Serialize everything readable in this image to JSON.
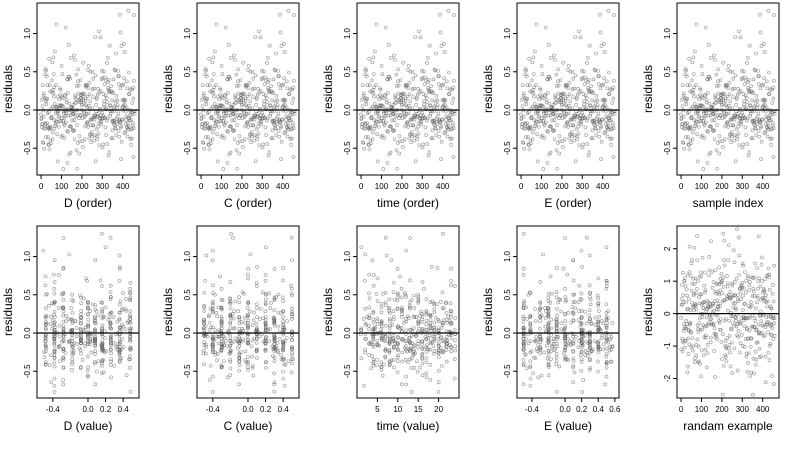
{
  "chart_data": [
    {
      "id": "d-order",
      "type": "scatter",
      "xlabel": "D (order)",
      "ylabel": "residuals",
      "xlim": [
        -20,
        480
      ],
      "ylim": [
        -0.85,
        1.4
      ],
      "xticks": [
        0,
        100,
        200,
        300,
        400
      ],
      "xtick_labels": [
        "0",
        "100",
        "200",
        "300",
        "400"
      ],
      "yticks": [
        -0.5,
        0,
        0.5,
        1
      ],
      "ytick_labels": [
        "-0.5",
        "0.0",
        "0.5",
        "1.0"
      ],
      "hline": 0,
      "x_kind": "order",
      "n": 460,
      "seed": 11
    },
    {
      "id": "c-order",
      "type": "scatter",
      "xlabel": "C (order)",
      "ylabel": "residuals",
      "xlim": [
        -20,
        480
      ],
      "ylim": [
        -0.85,
        1.4
      ],
      "xticks": [
        0,
        100,
        200,
        300,
        400
      ],
      "xtick_labels": [
        "0",
        "100",
        "200",
        "300",
        "400"
      ],
      "yticks": [
        -0.5,
        0,
        0.5,
        1
      ],
      "ytick_labels": [
        "-0.5",
        "0.0",
        "0.5",
        "1.0"
      ],
      "hline": 0,
      "x_kind": "order",
      "n": 460,
      "seed": 11
    },
    {
      "id": "time-order",
      "type": "scatter",
      "xlabel": "time (order)",
      "ylabel": "residuals",
      "xlim": [
        -20,
        480
      ],
      "ylim": [
        -0.85,
        1.4
      ],
      "xticks": [
        0,
        100,
        200,
        300,
        400
      ],
      "xtick_labels": [
        "0",
        "100",
        "200",
        "300",
        "400"
      ],
      "yticks": [
        -0.5,
        0,
        0.5,
        1
      ],
      "ytick_labels": [
        "-0.5",
        "0.0",
        "0.5",
        "1.0"
      ],
      "hline": 0,
      "x_kind": "order",
      "n": 460,
      "seed": 11
    },
    {
      "id": "e-order",
      "type": "scatter",
      "xlabel": "E (order)",
      "ylabel": "residuals",
      "xlim": [
        -20,
        480
      ],
      "ylim": [
        -0.85,
        1.4
      ],
      "xticks": [
        0,
        100,
        200,
        300,
        400
      ],
      "xtick_labels": [
        "0",
        "100",
        "200",
        "300",
        "400"
      ],
      "yticks": [
        -0.5,
        0,
        0.5,
        1
      ],
      "ytick_labels": [
        "-0.5",
        "0.0",
        "0.5",
        "1.0"
      ],
      "hline": 0,
      "x_kind": "order",
      "n": 460,
      "seed": 11
    },
    {
      "id": "sample-index",
      "type": "scatter",
      "xlabel": "sample index",
      "ylabel": "residuals",
      "xlim": [
        -20,
        480
      ],
      "ylim": [
        -0.85,
        1.4
      ],
      "xticks": [
        0,
        100,
        200,
        300,
        400
      ],
      "xtick_labels": [
        "0",
        "100",
        "200",
        "300",
        "400"
      ],
      "yticks": [
        -0.5,
        0,
        0.5,
        1
      ],
      "ytick_labels": [
        "-0.5",
        "0.0",
        "0.5",
        "1.0"
      ],
      "hline": 0,
      "x_kind": "order",
      "n": 460,
      "seed": 11
    },
    {
      "id": "d-value",
      "type": "scatter",
      "xlabel": "D (value)",
      "ylabel": "residuals",
      "xlim": [
        -0.58,
        0.58
      ],
      "ylim": [
        -0.85,
        1.4
      ],
      "xticks": [
        -0.4,
        0,
        0.2,
        0.4
      ],
      "xtick_labels": [
        "-0.4",
        "0.0",
        "0.2",
        "0.4"
      ],
      "yticks": [
        -0.5,
        0,
        0.5,
        1
      ],
      "ytick_labels": [
        "-0.5",
        "0.0",
        "0.5",
        "1.0"
      ],
      "hline": 0,
      "x_kind": "columns",
      "columns": [
        -0.48,
        -0.38,
        -0.28,
        -0.18,
        -0.08,
        0.0,
        0.08,
        0.16,
        0.26,
        0.36,
        0.48
      ],
      "n": 460,
      "seed": 11
    },
    {
      "id": "c-value",
      "type": "scatter",
      "xlabel": "C (value)",
      "ylabel": "residuals",
      "xlim": [
        -0.58,
        0.58
      ],
      "ylim": [
        -0.85,
        1.4
      ],
      "xticks": [
        -0.4,
        0,
        0.2,
        0.4
      ],
      "xtick_labels": [
        "-0.4",
        "0.0",
        "0.2",
        "0.4"
      ],
      "yticks": [
        -0.5,
        0,
        0.5,
        1
      ],
      "ytick_labels": [
        "-0.5",
        "0.0",
        "0.5",
        "1.0"
      ],
      "hline": 0,
      "x_kind": "columns",
      "columns": [
        -0.5,
        -0.4,
        -0.3,
        -0.2,
        -0.1,
        0.0,
        0.1,
        0.2,
        0.3,
        0.4,
        0.5
      ],
      "n": 460,
      "seed": 11
    },
    {
      "id": "time-value",
      "type": "scatter",
      "xlabel": "time (value)",
      "ylabel": "residuals",
      "xlim": [
        0,
        25
      ],
      "ylim": [
        -0.85,
        1.4
      ],
      "xticks": [
        5,
        10,
        15,
        20
      ],
      "xtick_labels": [
        "5",
        "10",
        "15",
        "20"
      ],
      "yticks": [
        -0.5,
        0,
        0.5,
        1
      ],
      "ytick_labels": [
        "-0.5",
        "0.0",
        "0.5",
        "1.0"
      ],
      "hline": 0,
      "x_kind": "columns",
      "columns": [
        1,
        2,
        3,
        4,
        5,
        6,
        7,
        8,
        9,
        10,
        11,
        12,
        13,
        14,
        15,
        16,
        17,
        18,
        19,
        20,
        21,
        22,
        23,
        24
      ],
      "n": 460,
      "seed": 11
    },
    {
      "id": "e-value",
      "type": "scatter",
      "xlabel": "E (value)",
      "ylabel": "residuals",
      "xlim": [
        -0.58,
        0.65
      ],
      "ylim": [
        -0.85,
        1.4
      ],
      "xticks": [
        -0.4,
        0,
        0.2,
        0.4,
        0.6
      ],
      "xtick_labels": [
        "-0.4",
        "0.0",
        "0.2",
        "0.4",
        "0.6"
      ],
      "yticks": [
        -0.5,
        0,
        0.5,
        1
      ],
      "ytick_labels": [
        "-0.5",
        "0.0",
        "0.5",
        "1.0"
      ],
      "hline": 0,
      "x_kind": "columns",
      "columns": [
        -0.5,
        -0.42,
        -0.3,
        -0.2,
        -0.1,
        0.0,
        0.1,
        0.2,
        0.3,
        0.4,
        0.5
      ],
      "n": 460,
      "seed": 11
    },
    {
      "id": "random-example",
      "type": "scatter",
      "xlabel": "randam example",
      "ylabel": "residuals",
      "xlim": [
        -20,
        480
      ],
      "ylim": [
        -2.6,
        2.7
      ],
      "xticks": [
        0,
        100,
        200,
        300,
        400
      ],
      "xtick_labels": [
        "0",
        "100",
        "200",
        "300",
        "400"
      ],
      "yticks": [
        -2,
        -1,
        0,
        1,
        2
      ],
      "ytick_labels": [
        "-2",
        "-1",
        "0",
        "1",
        "2"
      ],
      "hline": 0,
      "x_kind": "order",
      "dist": "normal",
      "n": 460,
      "seed": 77
    }
  ]
}
